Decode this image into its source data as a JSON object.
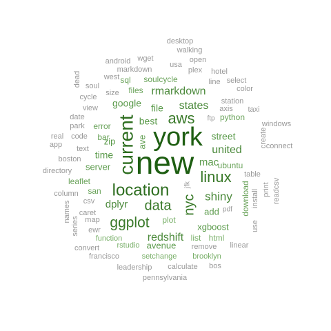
{
  "words": [
    {
      "text": "new",
      "color": "#1e5e12"
    },
    {
      "text": "york",
      "color": "#1e5e12"
    },
    {
      "text": "current",
      "color": "#2e6e20"
    },
    {
      "text": "location",
      "color": "#2e6e20"
    },
    {
      "text": "data",
      "color": "#3a7a2a"
    },
    {
      "text": "aws",
      "color": "#3a7a2a"
    },
    {
      "text": "linux",
      "color": "#3a7a2a"
    },
    {
      "text": "nyc",
      "color": "#3a7a2a"
    },
    {
      "text": "ggplot",
      "color": "#3a7a2a"
    },
    {
      "text": "shiny",
      "color": "#4c8a3c"
    },
    {
      "text": "united",
      "color": "#4c8a3c"
    },
    {
      "text": "states",
      "color": "#4c8a3c"
    },
    {
      "text": "rmarkdown",
      "color": "#4c8a3c"
    },
    {
      "text": "redshift",
      "color": "#4c8a3c"
    },
    {
      "text": "dplyr",
      "color": "#4c8a3c"
    },
    {
      "text": "file",
      "color": "#5a9a4a"
    },
    {
      "text": "mac",
      "color": "#5a9a4a"
    },
    {
      "text": "time",
      "color": "#5a9a4a"
    },
    {
      "text": "google",
      "color": "#5a9a4a"
    },
    {
      "text": "best",
      "color": "#5a9a4a"
    },
    {
      "text": "street",
      "color": "#5a9a4a"
    },
    {
      "text": "server",
      "color": "#5a9a4a"
    },
    {
      "text": "xgboost",
      "color": "#5a9a4a"
    },
    {
      "text": "avenue",
      "color": "#5a9a4a"
    },
    {
      "text": "ave",
      "color": "#5a9a4a"
    },
    {
      "text": "zip",
      "color": "#5a9a4a"
    },
    {
      "text": "add",
      "color": "#5a9a4a"
    },
    {
      "text": "python",
      "color": "#6aa35a"
    },
    {
      "text": "ubuntu",
      "color": "#6aa35a"
    },
    {
      "text": "download",
      "color": "#6aa35a"
    },
    {
      "text": "soulcycle",
      "color": "#6aa35a"
    },
    {
      "text": "sql",
      "color": "#6aa35a"
    },
    {
      "text": "files",
      "color": "#6aa35a"
    },
    {
      "text": "error",
      "color": "#6aa35a"
    },
    {
      "text": "bar",
      "color": "#6aa35a"
    },
    {
      "text": "leaflet",
      "color": "#6aa35a"
    },
    {
      "text": "san",
      "color": "#6aa35a"
    },
    {
      "text": "plot",
      "color": "#7ab06a"
    },
    {
      "text": "list",
      "color": "#7ab06a"
    },
    {
      "text": "html",
      "color": "#7ab06a"
    },
    {
      "text": "function",
      "color": "#7ab06a"
    },
    {
      "text": "brooklyn",
      "color": "#7ab06a"
    },
    {
      "text": "rstudio",
      "color": "#7ab06a"
    },
    {
      "text": "setchange",
      "color": "#7ab06a"
    },
    {
      "text": "station",
      "color": "#999999"
    },
    {
      "text": "axis",
      "color": "#999999"
    },
    {
      "text": "table",
      "color": "#999999"
    },
    {
      "text": "install",
      "color": "#999999"
    },
    {
      "text": "map",
      "color": "#999999"
    },
    {
      "text": "caret",
      "color": "#999999"
    },
    {
      "text": "csv",
      "color": "#999999"
    },
    {
      "text": "code",
      "color": "#999999"
    },
    {
      "text": "view",
      "color": "#999999"
    },
    {
      "text": "size",
      "color": "#999999"
    },
    {
      "text": "text",
      "color": "#999999"
    },
    {
      "text": "boston",
      "color": "#999999"
    },
    {
      "text": "park",
      "color": "#999999"
    },
    {
      "text": "date",
      "color": "#999999"
    },
    {
      "text": "cycle",
      "color": "#999999"
    },
    {
      "text": "west",
      "color": "#999999"
    },
    {
      "text": "markdown",
      "color": "#999999"
    },
    {
      "text": "wget",
      "color": "#999999"
    },
    {
      "text": "android",
      "color": "#999999"
    },
    {
      "text": "usa",
      "color": "#999999"
    },
    {
      "text": "open",
      "color": "#999999"
    },
    {
      "text": "plex",
      "color": "#999999"
    },
    {
      "text": "walking",
      "color": "#999999"
    },
    {
      "text": "desktop",
      "color": "#999999"
    },
    {
      "text": "hotel",
      "color": "#999999"
    },
    {
      "text": "select",
      "color": "#999999"
    },
    {
      "text": "line",
      "color": "#999999"
    },
    {
      "text": "color",
      "color": "#999999"
    },
    {
      "text": "taxi",
      "color": "#999999"
    },
    {
      "text": "windows",
      "color": "#999999"
    },
    {
      "text": "connect",
      "color": "#999999"
    },
    {
      "text": "create",
      "color": "#999999"
    },
    {
      "text": "readcsv",
      "color": "#999999"
    },
    {
      "text": "print",
      "color": "#999999"
    },
    {
      "text": "use",
      "color": "#999999"
    },
    {
      "text": "linear",
      "color": "#999999"
    },
    {
      "text": "bos",
      "color": "#999999"
    },
    {
      "text": "calculate",
      "color": "#999999"
    },
    {
      "text": "leadership",
      "color": "#999999"
    },
    {
      "text": "pennsylvania",
      "color": "#999999"
    },
    {
      "text": "francisco",
      "color": "#999999"
    },
    {
      "text": "convert",
      "color": "#999999"
    },
    {
      "text": "series",
      "color": "#999999"
    },
    {
      "text": "ewr",
      "color": "#999999"
    },
    {
      "text": "names",
      "color": "#999999"
    },
    {
      "text": "column",
      "color": "#999999"
    },
    {
      "text": "directory",
      "color": "#999999"
    },
    {
      "text": "real",
      "color": "#999999"
    },
    {
      "text": "app",
      "color": "#999999"
    },
    {
      "text": "soul",
      "color": "#999999"
    },
    {
      "text": "dead",
      "color": "#999999"
    },
    {
      "text": "ftp",
      "color": "#999999"
    },
    {
      "text": "jfk",
      "color": "#999999"
    },
    {
      "text": "pdf",
      "color": "#999999"
    },
    {
      "text": "remove",
      "color": "#999999"
    }
  ]
}
